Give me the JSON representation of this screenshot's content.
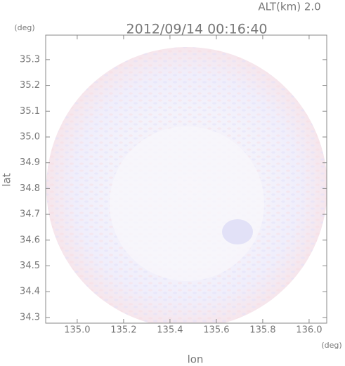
{
  "chart_data": {
    "type": "image",
    "title": "2012/09/14 00:16:40",
    "subtitle": "ALT(km) 2.0",
    "y_unit": "(deg)",
    "x_unit": "(deg)",
    "xlabel": "lon",
    "ylabel": "lat",
    "xlim": [
      134.864,
      136.076
    ],
    "ylim": [
      34.278,
      35.395
    ],
    "xticks": [
      {
        "value": 135.0,
        "label": "135.0"
      },
      {
        "value": 135.2,
        "label": "135.2"
      },
      {
        "value": 135.4,
        "label": "135.4"
      },
      {
        "value": 135.6,
        "label": "135.6"
      },
      {
        "value": 135.8,
        "label": "135.8"
      },
      {
        "value": 136.0,
        "label": "136.0"
      }
    ],
    "yticks": [
      {
        "value": 34.3,
        "label": "34.3"
      },
      34.4,
      34.5,
      34.6,
      34.7,
      34.8,
      34.9,
      {
        "value": 35.0,
        "label": "35.0"
      },
      35.1,
      35.2,
      35.3
    ]
  }
}
